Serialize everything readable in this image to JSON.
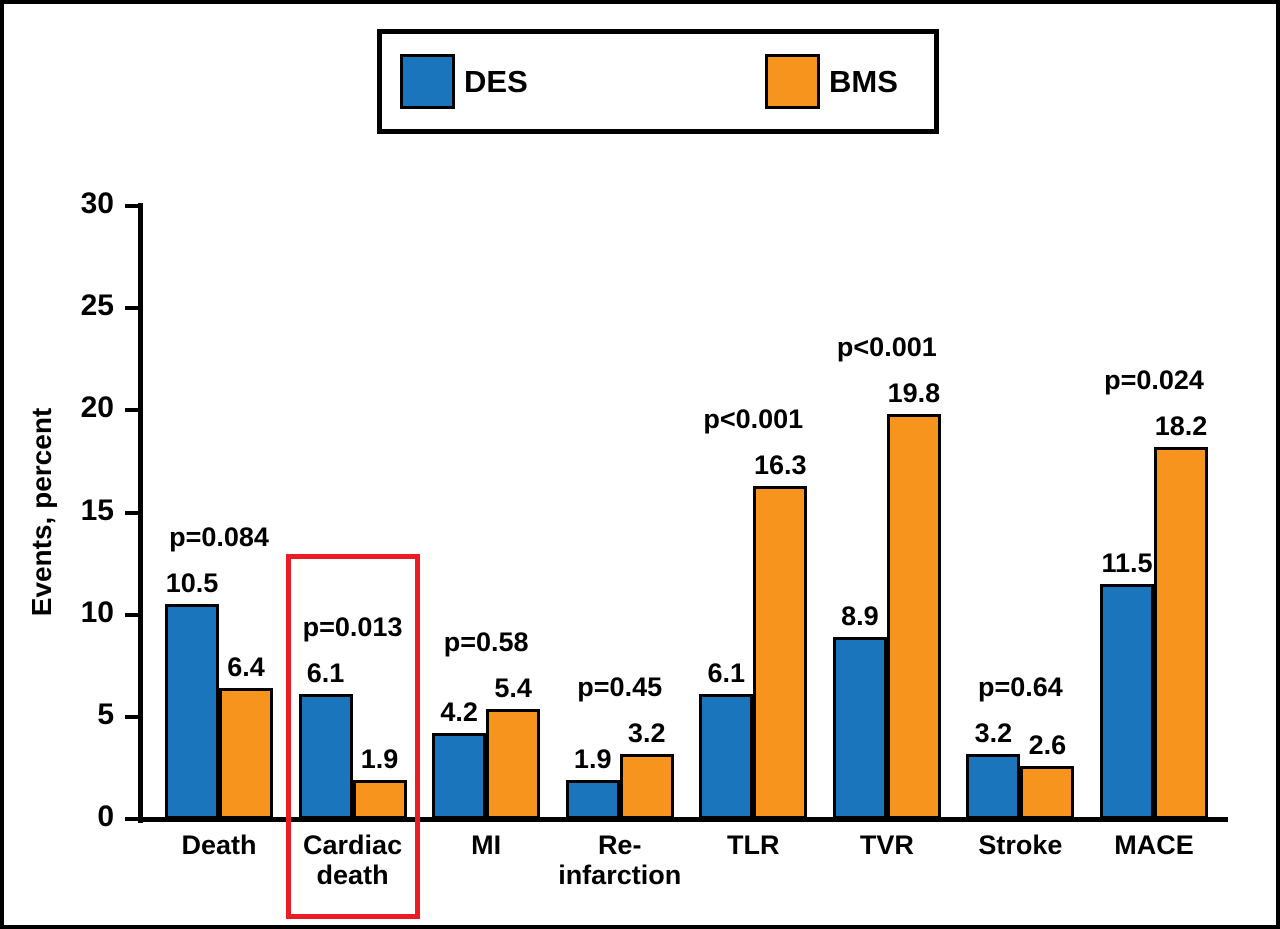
{
  "chart_data": {
    "type": "bar",
    "title": "",
    "ylabel": "Events, percent",
    "ylim": [
      0,
      30
    ],
    "yticks": [
      0,
      5,
      10,
      15,
      20,
      25,
      30
    ],
    "grid": false,
    "legend_position": "top",
    "categories": [
      "Death",
      "Cardiac\ndeath",
      "MI",
      "Re-\ninfarction",
      "TLR",
      "TVR",
      "Stroke",
      "MACE"
    ],
    "series": [
      {
        "name": "DES",
        "color": "#1b75bc",
        "values": [
          10.5,
          6.1,
          4.2,
          1.9,
          6.1,
          8.9,
          3.2,
          11.5
        ]
      },
      {
        "name": "BMS",
        "color": "#f7941e",
        "values": [
          6.4,
          1.9,
          5.4,
          3.2,
          16.3,
          19.8,
          2.6,
          18.2
        ]
      }
    ],
    "p_values": [
      "p=0.084",
      "p=0.013",
      "p=0.58",
      "p=0.45",
      "p<0.001",
      "p<0.001",
      "p=0.64",
      "p=0.024"
    ],
    "highlight": {
      "category": "Cardiac death",
      "category_index": 1,
      "color": "#ec1c24"
    }
  },
  "colors": {
    "des_blue": "#1b75bc",
    "bms_orange": "#f7941e",
    "highlight_red": "#ec1c24",
    "axis_black": "#000000"
  }
}
